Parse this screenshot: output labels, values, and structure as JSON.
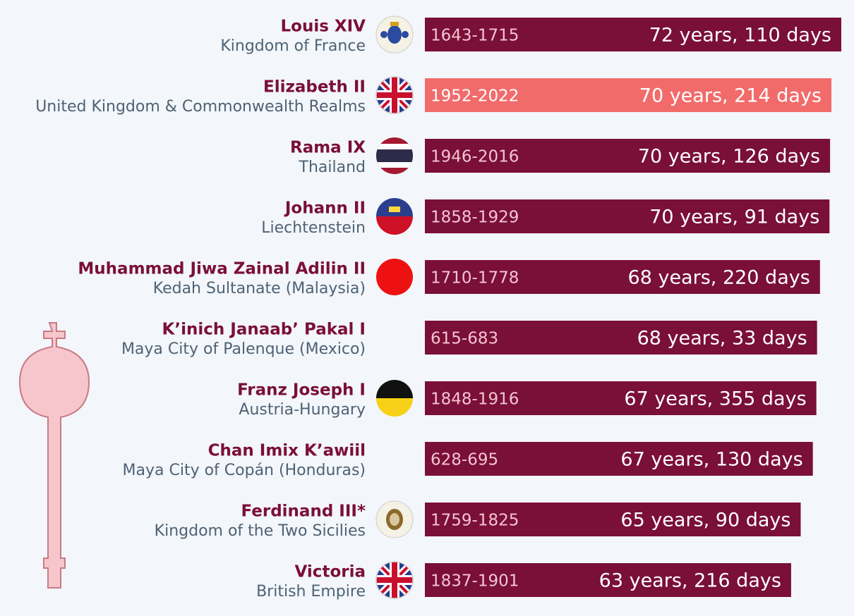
{
  "chart_data": {
    "type": "bar",
    "categories": [
      "Louis XIV",
      "Elizabeth II",
      "Rama IX",
      "Johann II",
      "Muhammad Jiwa Zainal Adilin II",
      "K’inich Janaab’ Pakal I",
      "Franz Joseph I",
      "Chan Imix K’awiil",
      "Ferdinand III*",
      "Victoria"
    ],
    "realms": [
      "Kingdom of France",
      "United Kingdom & Commonwealth Realms",
      "Thailand",
      "Liechtenstein",
      "Kedah Sultanate (Malaysia)",
      "Maya City of Palenque (Mexico)",
      "Austria-Hungary",
      "Maya City of Copán (Honduras)",
      "Kingdom of the Two Sicilies",
      "British Empire"
    ],
    "periods": [
      "1643-1715",
      "1952-2022",
      "1946-2016",
      "1858-1929",
      "1710-1778",
      "615-683",
      "1848-1916",
      "628-695",
      "1759-1825",
      "1837-1901"
    ],
    "values": [
      72.3,
      70.59,
      70.35,
      70.25,
      68.6,
      68.09,
      67.97,
      67.36,
      65.25,
      63.59
    ],
    "value_labels": [
      "72 years, 110 days",
      "70 years, 214 days",
      "70 years, 126 days",
      "70 years, 91 days",
      "68 years, 220 days",
      "68 years, 33 days",
      "67 years, 355 days",
      "67 years, 130 days",
      "65 years, 90 days",
      "63 years, 216 days"
    ],
    "colors": [
      "#7a0f38",
      "#f26b6b",
      "#7a0f38",
      "#7a0f38",
      "#7a0f38",
      "#7a0f38",
      "#7a0f38",
      "#7a0f38",
      "#7a0f38",
      "#7a0f38"
    ]
  }
}
